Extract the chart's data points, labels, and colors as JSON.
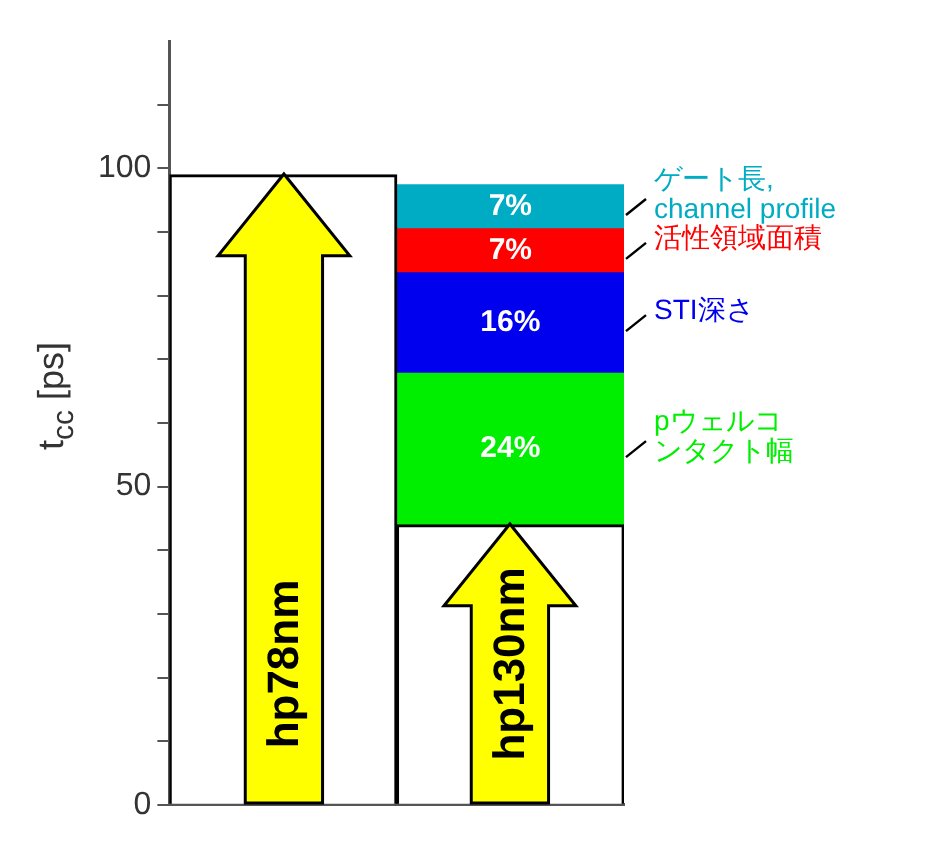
{
  "chart_data": {
    "type": "bar",
    "ylabel": "t$_{cc}$ [ps]",
    "categories": [
      "hp78nm",
      "hp130nm"
    ],
    "stacked": true,
    "ylim": [
      0,
      120
    ],
    "yticks": [
      0,
      {
        "value": 10,
        "label": null
      },
      {
        "value": 20,
        "label": null
      },
      {
        "value": 30,
        "label": null
      },
      {
        "value": 40,
        "label": null
      },
      50,
      {
        "value": 60,
        "label": null
      },
      {
        "value": 70,
        "label": null
      },
      {
        "value": 80,
        "label": null
      },
      {
        "value": 90,
        "label": null
      },
      100,
      {
        "value": 110,
        "label": null
      }
    ],
    "grid": false,
    "legend": false,
    "series": [
      {
        "color": "#ffffff",
        "values": [
          99,
          44
        ]
      },
      {
        "name": "pウェルコンタクト幅",
        "color": "#00ee00",
        "values": [
          null,
          23.8
        ],
        "value_labels": [
          null,
          "24%"
        ]
      },
      {
        "name": "STI深さ",
        "color": "#0000ee",
        "values": [
          null,
          15.8
        ],
        "value_labels": [
          null,
          "16%"
        ]
      },
      {
        "name": "活性領域面積",
        "color": "#ff0000",
        "values": [
          null,
          6.9
        ],
        "value_labels": [
          null,
          "7%"
        ]
      },
      {
        "name": "ゲート長, channel profile",
        "color": "#00acc4",
        "values": [
          null,
          6.9
        ],
        "value_labels": [
          null,
          "7%"
        ]
      }
    ]
  }
}
